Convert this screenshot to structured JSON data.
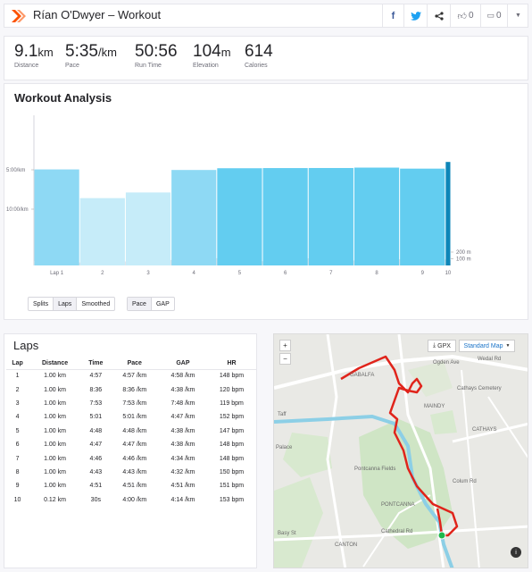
{
  "header": {
    "title": "Rían O'Dwyer – Workout",
    "kudos_count": "0",
    "comments_count": "0"
  },
  "stats": [
    {
      "value": "9.1",
      "unit": "km",
      "label": "Distance"
    },
    {
      "value": "5:35",
      "unit": "/km",
      "label": "Pace"
    },
    {
      "value": "50:56",
      "unit": "",
      "label": "Run Time"
    },
    {
      "value": "104",
      "unit": "m",
      "label": "Elevation"
    },
    {
      "value": "614",
      "unit": "",
      "label": "Calories"
    }
  ],
  "analysis": {
    "title": "Workout Analysis",
    "view_buttons": [
      "Splits",
      "Laps",
      "Smoothed"
    ],
    "metric_buttons": [
      "Pace",
      "GAP"
    ]
  },
  "chart_data": {
    "type": "bar",
    "categories": [
      "Lap 1",
      "2",
      "3",
      "4",
      "5",
      "6",
      "7",
      "8",
      "9",
      "10"
    ],
    "pace_minutes_per_km": [
      4.95,
      8.6,
      7.88,
      5.02,
      4.8,
      4.78,
      4.77,
      4.72,
      4.85,
      4.0
    ],
    "lap_distance_km": [
      1.0,
      1.0,
      1.0,
      1.0,
      1.0,
      1.0,
      1.0,
      1.0,
      1.0,
      0.12
    ],
    "y_ticks": [
      {
        "label": "5:00/km",
        "value": 5
      },
      {
        "label": "10:00/km",
        "value": 10
      }
    ],
    "elevation_ticks": [
      {
        "label": "200 m",
        "value": 200
      },
      {
        "label": "100 m",
        "value": 100
      }
    ],
    "bar_colors": {
      "fast": "#63cdf0",
      "mid": "#8ed9f4",
      "slow": "#c6ecf9",
      "last": "#0d86b8"
    }
  },
  "laps": {
    "title": "Laps",
    "columns": [
      "Lap",
      "Distance",
      "Time",
      "Pace",
      "GAP",
      "HR"
    ],
    "rows": [
      [
        "1",
        "1.00 km",
        "4:57",
        "4:57 /km",
        "4:58 /km",
        "148 bpm"
      ],
      [
        "2",
        "1.00 km",
        "8:36",
        "8:36 /km",
        "4:38 /km",
        "120 bpm"
      ],
      [
        "3",
        "1.00 km",
        "7:53",
        "7:53 /km",
        "7:48 /km",
        "119 bpm"
      ],
      [
        "4",
        "1.00 km",
        "5:01",
        "5:01 /km",
        "4:47 /km",
        "152 bpm"
      ],
      [
        "5",
        "1.00 km",
        "4:48",
        "4:48 /km",
        "4:38 /km",
        "147 bpm"
      ],
      [
        "6",
        "1.00 km",
        "4:47",
        "4:47 /km",
        "4:38 /km",
        "148 bpm"
      ],
      [
        "7",
        "1.00 km",
        "4:46",
        "4:46 /km",
        "4:34 /km",
        "148 bpm"
      ],
      [
        "8",
        "1.00 km",
        "4:43",
        "4:43 /km",
        "4:32 /km",
        "150 bpm"
      ],
      [
        "9",
        "1.00 km",
        "4:51",
        "4:51 /km",
        "4:51 /km",
        "151 bpm"
      ],
      [
        "10",
        "0.12 km",
        "30s",
        "4:00 /km",
        "4:14 /km",
        "153 bpm"
      ]
    ]
  },
  "map": {
    "gpx_label": "GPX",
    "map_type_label": "Standard Map",
    "zoom_in": "+",
    "zoom_out": "−",
    "info": "i",
    "labels": {
      "gabalfa": "GABALFA",
      "maindy": "MAINDY",
      "cathays": "CATHAYS",
      "cathays_cemetery": "Cathays Cemetery",
      "pontcanna_fields": "Pontcanna Fields",
      "pontcanna": "PONTCANNA",
      "canton": "CANTON",
      "ogden_ave": "Ogden Ave",
      "wedal_rd": "Wedal Rd",
      "colum_rd": "Colum Rd",
      "cathedral_rd": "Cathedral Rd",
      "palace": "Palace",
      "taff": "Taff",
      "basy_st": "Basy St"
    }
  }
}
